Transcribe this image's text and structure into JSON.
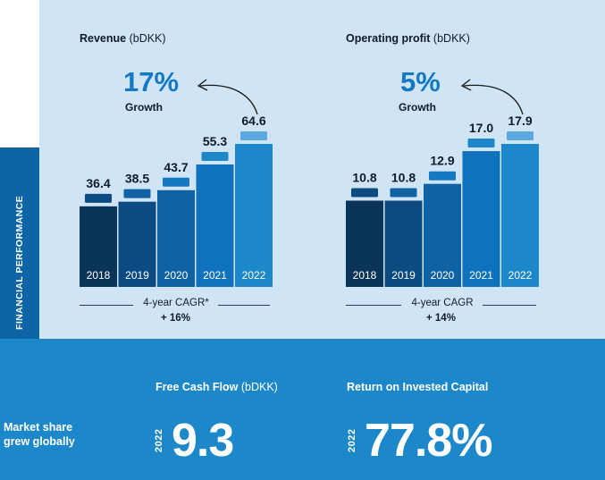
{
  "side_tab": {
    "label": "FINANCIAL PERFORMANCE"
  },
  "colors": {
    "panel": "#cfe4f4",
    "band": "#1d88c9",
    "bars": [
      "#0b3558",
      "#0c4b82",
      "#0f63a4",
      "#0f72bd",
      "#1d88c9"
    ],
    "caps": [
      "#0c4b82",
      "#0f63a4",
      "#1478c2",
      "#1d88c9",
      "#5ea9dc"
    ]
  },
  "revenue": {
    "title_bold": "Revenue",
    "title_unit": " (bDKK)",
    "growth_pct": "17%",
    "growth_label": "Growth",
    "cagr_label": "4-year CAGR*",
    "cagr_value": "+ 16%"
  },
  "operating_profit": {
    "title_bold": "Operating profit",
    "title_unit": " (bDKK)",
    "growth_pct": "5%",
    "growth_label": "Growth",
    "cagr_label": "4-year CAGR",
    "cagr_value": "+ 14%"
  },
  "free_cash_flow": {
    "title_bold": "Free Cash Flow",
    "title_unit": " (bDKK)",
    "year": "2022",
    "value": "9.3"
  },
  "roic": {
    "title": "Return on Invested Capital",
    "year": "2022",
    "value": "77.8%"
  },
  "market_share": {
    "line1": "Market share",
    "line2": "grew globally"
  },
  "chart_data": [
    {
      "type": "bar",
      "title": "Revenue (bDKK)",
      "categories": [
        "2018",
        "2019",
        "2020",
        "2021",
        "2022"
      ],
      "values": [
        36.4,
        38.5,
        43.7,
        55.3,
        64.6
      ],
      "labels": [
        "36.4",
        "38.5",
        "43.7",
        "55.3",
        "64.6"
      ],
      "ylim": [
        0,
        64.6
      ]
    },
    {
      "type": "bar",
      "title": "Operating profit (bDKK)",
      "categories": [
        "2018",
        "2019",
        "2020",
        "2021",
        "2022"
      ],
      "values": [
        10.8,
        10.8,
        12.9,
        17.0,
        17.9
      ],
      "labels": [
        "10.8",
        "10.8",
        "12.9",
        "17.0",
        "17.9"
      ],
      "ylim": [
        0,
        17.9
      ]
    }
  ]
}
